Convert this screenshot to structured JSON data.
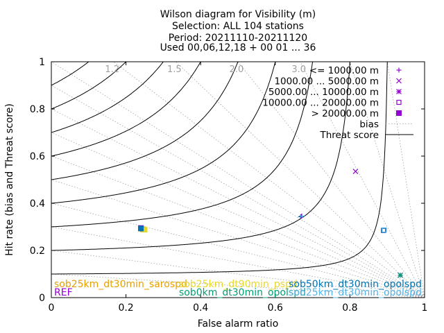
{
  "chart_data": {
    "type": "scatter",
    "title_lines": [
      "Wilson diagram  for Visibility (m)",
      "Selection: ALL     104 stations",
      "Period: 20211110-20211120",
      "Used 00,06,12,18 + 00 01 ... 36"
    ],
    "xlabel": "False alarm ratio",
    "ylabel": "Hit rate (bias and Threat score)",
    "xlim": [
      0,
      1
    ],
    "ylim": [
      0,
      1
    ],
    "x_ticks": [
      "0",
      "0.2",
      "0.4",
      "0.6",
      "0.8",
      "1"
    ],
    "y_ticks": [
      "0",
      "0.2",
      "0.4",
      "0.6",
      "0.8",
      "1"
    ],
    "bias_values": [
      0.1,
      0.2,
      0.3,
      0.4,
      0.5,
      0.6,
      0.7,
      0.8,
      0.9,
      1.0,
      1.2,
      1.5,
      2.0,
      3.0,
      5.0,
      10.0
    ],
    "bias_labels": [
      "1.2",
      "1.5",
      "2.0",
      "3.0"
    ],
    "threat_score_values": [
      0.1,
      0.2,
      0.3,
      0.4,
      0.5,
      0.6,
      0.7,
      0.8,
      0.9
    ],
    "legend": {
      "placement": "top-right",
      "entries": [
        {
          "label": "<= 1000.00 m",
          "marker": "plus"
        },
        {
          "label": "1000.00 ... 5000.00 m",
          "marker": "cross"
        },
        {
          "label": "5000.00 ... 10000.00 m",
          "marker": "star"
        },
        {
          "label": "10000.00 ... 20000.00 m",
          "marker": "open-square"
        },
        {
          "label": "> 20000.00 m",
          "marker": "filled-square"
        },
        {
          "label": "bias",
          "marker": "dotted-line"
        },
        {
          "label": "Threat score",
          "marker": "solid-line"
        }
      ]
    },
    "experiments": [
      {
        "name": "REF",
        "color": "#9400d3"
      },
      {
        "name": "sob25km_dt30min_sarospd",
        "color": "#e69f00"
      },
      {
        "name": "sob25km_dt90min_pspd",
        "color": "#e8d82c"
      },
      {
        "name": "sob0km_dt30min_opolspd",
        "color": "#009e73"
      },
      {
        "name": "sob50km_dt30min_opolspd",
        "color": "#0072b2"
      },
      {
        "name": "sob25km_dt30min_opolspd",
        "color": "#56b4e9"
      }
    ],
    "points": [
      {
        "experiment": "REF",
        "class": "<= 1000.00 m",
        "x": 0.67,
        "y": 0.345
      },
      {
        "experiment": "REF",
        "class": "1000.00 ... 5000.00 m",
        "x": 0.815,
        "y": 0.535
      },
      {
        "experiment": "REF",
        "class": "5000.00 ... 10000.00 m",
        "x": 0.935,
        "y": 0.095
      },
      {
        "experiment": "REF",
        "class": "10000.00 ... 20000.00 m",
        "x": 0.89,
        "y": 0.285
      },
      {
        "experiment": "REF",
        "class": "> 20000.00 m",
        "x": 0.24,
        "y": 0.295
      },
      {
        "experiment": "sob25km_dt30min_sarospd",
        "class": "> 20000.00 m",
        "x": 0.245,
        "y": 0.29
      },
      {
        "experiment": "sob25km_dt90min_pspd",
        "class": "> 20000.00 m",
        "x": 0.25,
        "y": 0.288
      },
      {
        "experiment": "sob0km_dt30min_opolspd",
        "class": "5000.00 ... 10000.00 m",
        "x": 0.935,
        "y": 0.095
      },
      {
        "experiment": "sob50km_dt30min_opolspd",
        "class": "> 20000.00 m",
        "x": 0.24,
        "y": 0.293
      },
      {
        "experiment": "sob50km_dt30min_opolspd",
        "class": "10000.00 ... 20000.00 m",
        "x": 0.89,
        "y": 0.285
      },
      {
        "experiment": "sob50km_dt30min_opolspd",
        "class": "<= 1000.00 m",
        "x": 0.668,
        "y": 0.343
      },
      {
        "experiment": "sob25km_dt30min_opolspd",
        "class": "10000.00 ... 20000.00 m",
        "x": 0.892,
        "y": 0.287
      },
      {
        "experiment": "sob25km_dt30min_opolspd",
        "class": "<= 1000.00 m",
        "x": 0.672,
        "y": 0.346
      }
    ]
  }
}
